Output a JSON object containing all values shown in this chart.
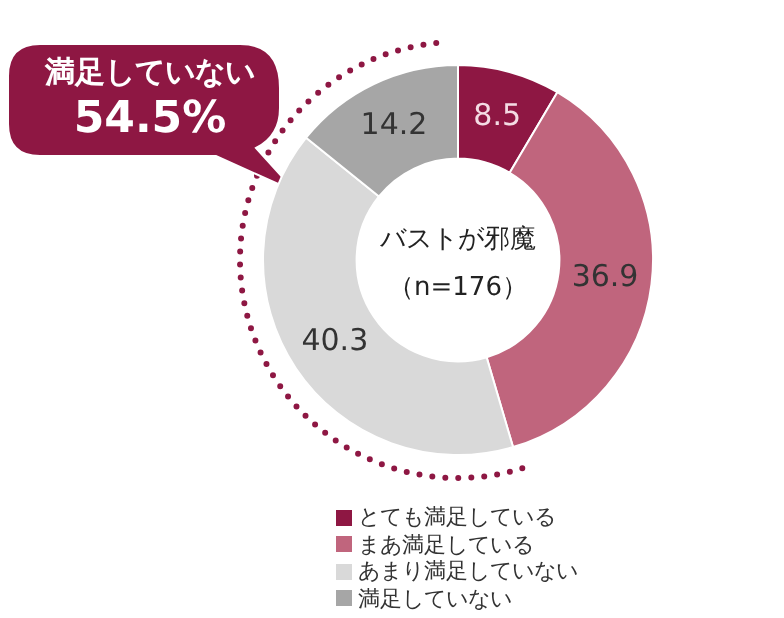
{
  "chart_data": {
    "type": "donut",
    "title": "バストが邪魔",
    "subtitle": "（n=176）",
    "categories": [
      "とても満足している",
      "まあ満足している",
      "あまり満足していない",
      "満足していない"
    ],
    "values": [
      8.5,
      36.9,
      40.3,
      14.2
    ],
    "colors": [
      "#8e1743",
      "#c0657d",
      "#d9d9d9",
      "#a6a6a6"
    ],
    "data_labels": true,
    "legend": "bottom",
    "annotations": [
      "満足していない",
      "54.5%"
    ]
  }
}
